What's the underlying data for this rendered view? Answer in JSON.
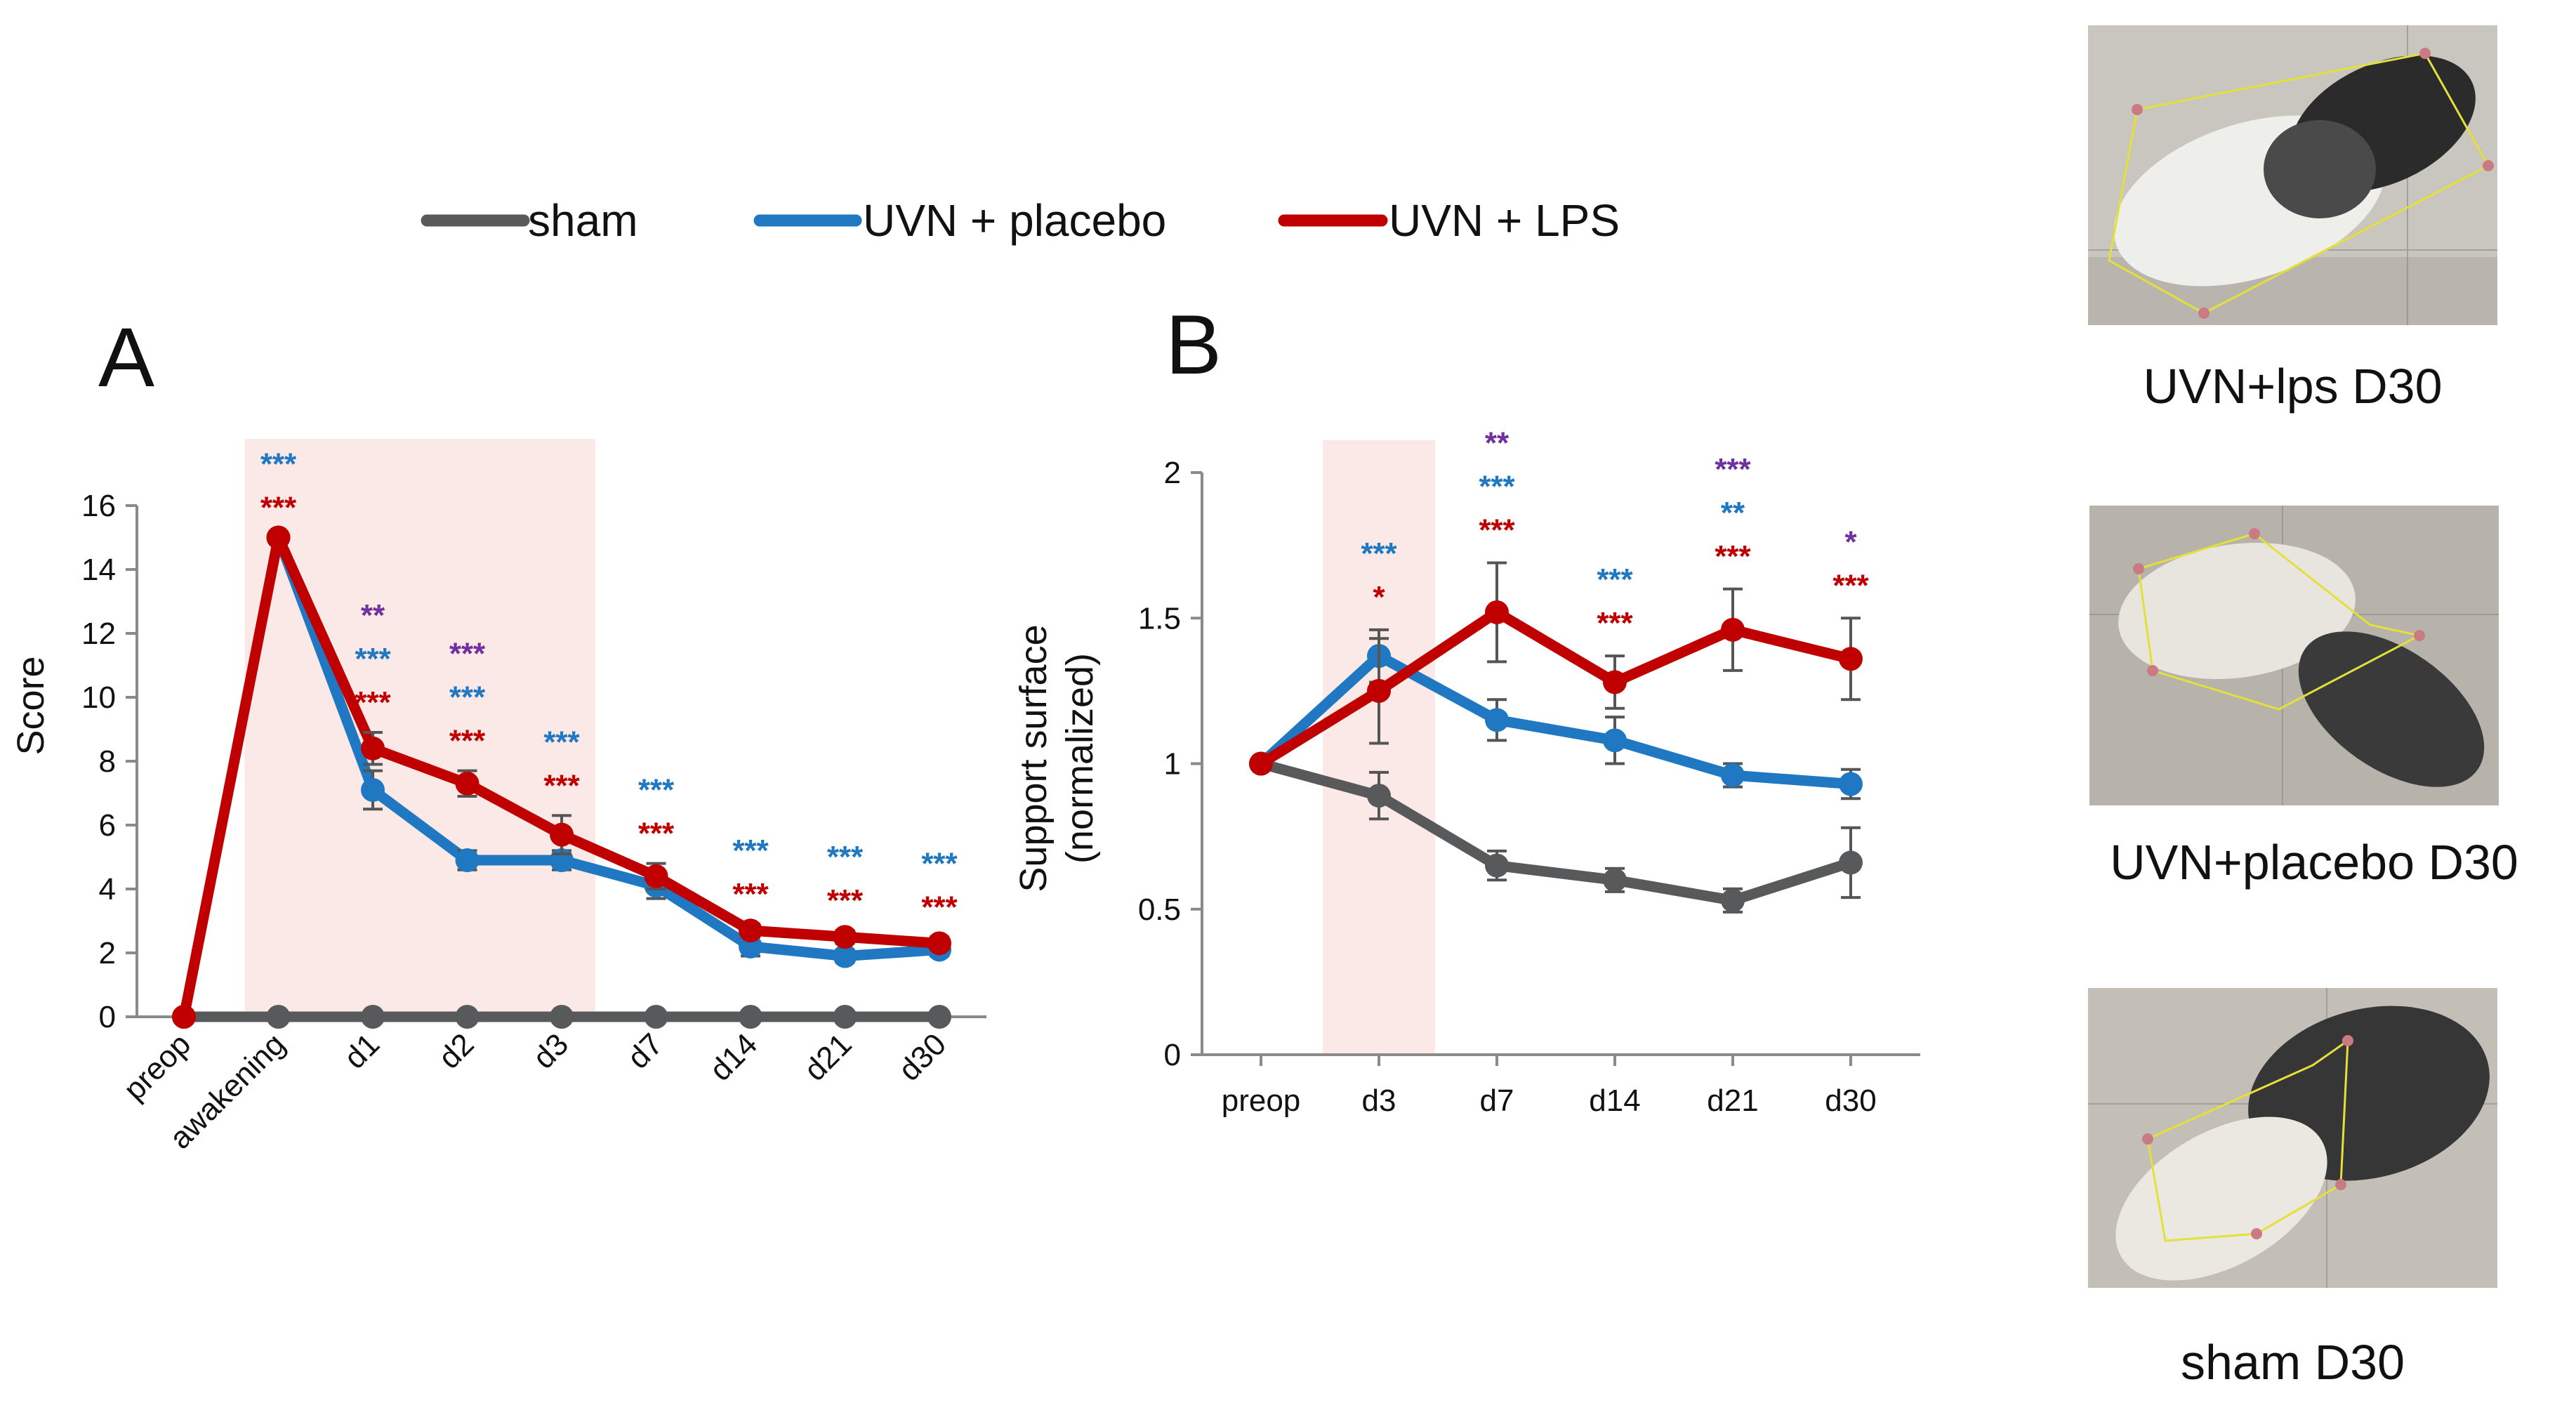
{
  "colors": {
    "sham": "#58595b",
    "placebo": "#1f78c1",
    "lps": "#c00000",
    "purple": "#7030a0",
    "shade": "#fbe9e7"
  },
  "legend": [
    {
      "label": "sham",
      "color": "#58595b"
    },
    {
      "label": "UVN + placebo",
      "color": "#1f78c1"
    },
    {
      "label": "UVN + LPS",
      "color": "#c00000"
    }
  ],
  "chart_data": [
    {
      "panel": "A",
      "type": "line",
      "ylabel": "Score",
      "xlabel": "",
      "ylim": [
        0,
        16
      ],
      "yticks": [
        0,
        2,
        4,
        6,
        8,
        10,
        12,
        14,
        16
      ],
      "categories": [
        "preop",
        "awakening",
        "d1",
        "d2",
        "d3",
        "d7",
        "d14",
        "d21",
        "d30"
      ],
      "shaded_range": [
        "awakening",
        "d3"
      ],
      "series": [
        {
          "name": "sham",
          "values": [
            0,
            0,
            0,
            0,
            0,
            0,
            0,
            0,
            0
          ],
          "errors": [
            0,
            0,
            0,
            0,
            0,
            0,
            0,
            0,
            0
          ]
        },
        {
          "name": "UVN + placebo",
          "values": [
            null,
            15,
            7.1,
            4.9,
            4.9,
            4.1,
            2.2,
            1.9,
            2.1
          ],
          "errors": [
            0,
            0,
            0.6,
            0.3,
            0.3,
            0.4,
            0.3,
            0.2,
            0.2
          ]
        },
        {
          "name": "UVN + LPS",
          "values": [
            0,
            15,
            8.4,
            7.3,
            5.7,
            4.4,
            2.7,
            2.5,
            2.3
          ],
          "errors": [
            0,
            0,
            0.5,
            0.4,
            0.6,
            0.4,
            0.2,
            0.2,
            0.2
          ]
        }
      ],
      "significance": [
        {
          "x": "awakening",
          "blue": "***",
          "red": "***"
        },
        {
          "x": "d1",
          "purple": "**",
          "blue": "***",
          "red": "***"
        },
        {
          "x": "d2",
          "purple": "***",
          "blue": "***",
          "red": "***"
        },
        {
          "x": "d3",
          "blue": "***",
          "red": "***"
        },
        {
          "x": "d7",
          "blue": "***",
          "red": "***"
        },
        {
          "x": "d14",
          "blue": "***",
          "red": "***"
        },
        {
          "x": "d21",
          "blue": "***",
          "red": "***"
        },
        {
          "x": "d30",
          "blue": "***",
          "red": "***"
        }
      ]
    },
    {
      "panel": "B",
      "type": "line",
      "ylabel_line1": "Support surface",
      "ylabel_line2": "(normalized)",
      "xlabel": "",
      "ylim": [
        0,
        2
      ],
      "yticks": [
        "0",
        "0.5",
        "1",
        "1.5",
        "2"
      ],
      "categories": [
        "preop",
        "d3",
        "d7",
        "d14",
        "d21",
        "d30"
      ],
      "shaded_range": [
        "d3",
        "d3"
      ],
      "series": [
        {
          "name": "sham",
          "values": [
            1,
            0.89,
            0.65,
            0.6,
            0.53,
            0.66
          ],
          "errors": [
            0,
            0.08,
            0.05,
            0.04,
            0.04,
            0.12
          ]
        },
        {
          "name": "UVN + placebo",
          "values": [
            1,
            1.37,
            1.15,
            1.08,
            0.96,
            0.93
          ],
          "errors": [
            0,
            0.09,
            0.07,
            0.08,
            0.04,
            0.05
          ]
        },
        {
          "name": "UVN + LPS",
          "values": [
            1,
            1.25,
            1.52,
            1.28,
            1.46,
            1.36
          ],
          "errors": [
            0,
            0.18,
            0.17,
            0.09,
            0.14,
            0.14
          ]
        }
      ],
      "significance": [
        {
          "x": "d3",
          "blue": "***",
          "red": "*"
        },
        {
          "x": "d7",
          "purple": "**",
          "blue": "***",
          "red": "***"
        },
        {
          "x": "d14",
          "blue": "***",
          "red": "***"
        },
        {
          "x": "d21",
          "purple": "***",
          "blue": "**",
          "red": "***"
        },
        {
          "x": "d30",
          "purple": "*",
          "red": "***"
        }
      ]
    }
  ],
  "panel_labels": {
    "a": "A",
    "b": "B"
  },
  "photos": [
    {
      "caption": "UVN+lps D30"
    },
    {
      "caption": "UVN+placebo D30"
    },
    {
      "caption": "sham D30"
    }
  ]
}
